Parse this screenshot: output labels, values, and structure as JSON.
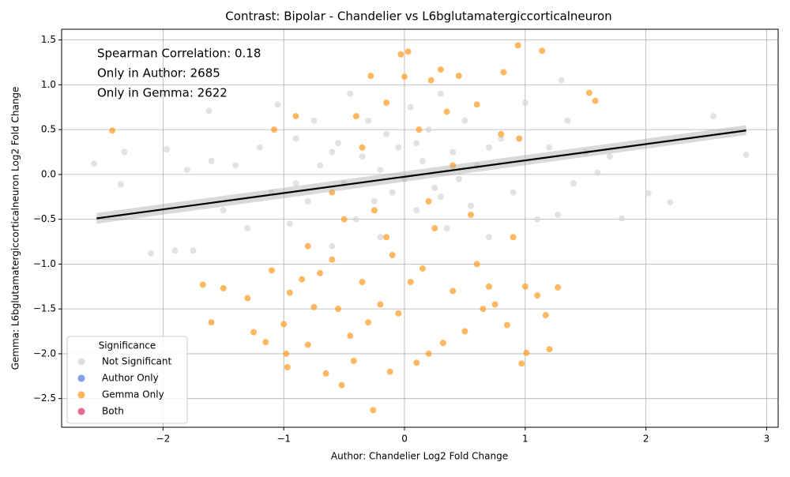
{
  "chart_data": {
    "type": "scatter",
    "title": "Contrast: Bipolar - Chandelier vs L6bglutamatergiccorticalneuron",
    "x_label": "Author: Chandelier Log2 Fold Change",
    "y_label": "Gemma: L6bglutamatergiccorticalneuron Log2 Fold Change",
    "annotations": [
      "Spearman Correlation: 0.18",
      "Only in Author: 2685",
      "Only in Gemma: 2622"
    ],
    "xlim": [
      -2.84,
      3.095
    ],
    "ylim": [
      -2.82,
      1.62
    ],
    "xticks": [
      {
        "value": -2,
        "label": "−2"
      },
      {
        "value": -1,
        "label": "−1"
      },
      0,
      1,
      2,
      3
    ],
    "yticks": [
      {
        "value": -2.5,
        "label": "−2.5"
      },
      {
        "value": -2.0,
        "label": "−2.0"
      },
      {
        "value": -1.5,
        "label": "−1.5"
      },
      {
        "value": -1.0,
        "label": "−1.0"
      },
      {
        "value": -0.5,
        "label": "−0.5"
      },
      {
        "value": 0,
        "label": "0.0"
      },
      0.5,
      {
        "value": 1.0,
        "label": "1.0"
      },
      1.5
    ],
    "grid": true,
    "legend_title": "Significance",
    "legend_position": "lower left",
    "series": [
      {
        "name": "Not Significant",
        "color": "#d3d3d3",
        "x": [
          -2.57,
          -2.1,
          -2.32,
          -2.35,
          -1.97,
          -1.9,
          -1.75,
          -1.8,
          -1.62,
          -1.6,
          -1.5,
          -1.4,
          -1.3,
          -1.2,
          -1.1,
          -1.05,
          -0.95,
          -0.9,
          -0.8,
          -0.75,
          -0.7,
          -0.6,
          -0.55,
          -0.5,
          -0.45,
          -0.4,
          -0.35,
          -0.3,
          -0.25,
          -0.2,
          -0.15,
          -0.1,
          -0.05,
          0,
          0.05,
          0.1,
          0.15,
          0.2,
          0.25,
          0.3,
          0.35,
          0.4,
          0.45,
          0.5,
          0.55,
          0.6,
          0.7,
          0.8,
          0.9,
          1.0,
          1.1,
          1.2,
          1.3,
          1.4,
          1.5,
          1.6,
          1.7,
          1.8,
          2.02,
          2.2,
          2.56,
          2.83,
          1.27,
          1.35,
          -0.2,
          0.1,
          -0.6,
          0.3,
          -0.9,
          0.7
        ],
        "values": [
          0.12,
          -0.88,
          0.25,
          -0.11,
          0.28,
          -0.85,
          -0.85,
          0.05,
          0.71,
          0.15,
          -0.4,
          0.1,
          -0.6,
          0.3,
          -0.2,
          0.78,
          -0.55,
          0.4,
          -0.3,
          0.6,
          0.1,
          -0.8,
          0.35,
          -0.1,
          0.9,
          -0.5,
          0.2,
          0.6,
          -0.3,
          0.05,
          0.45,
          -0.2,
          0.3,
          -0.05,
          0.75,
          -0.4,
          0.15,
          0.5,
          -0.15,
          0.9,
          -0.6,
          0.25,
          -0.05,
          0.6,
          -0.35,
          0.1,
          -0.7,
          0.4,
          -0.2,
          0.8,
          -0.5,
          0.3,
          1.05,
          -0.1,
          0.25,
          0.02,
          0.2,
          -0.49,
          -0.21,
          -0.31,
          0.65,
          0.22,
          -0.45,
          0.6,
          -0.7,
          0.35,
          0.25,
          -0.25,
          -0.1,
          0.3
        ]
      },
      {
        "name": "Author Only",
        "color": "#5b7fe0",
        "x": [],
        "values": []
      },
      {
        "name": "Gemma Only",
        "color": "#ff9a1f",
        "x": [
          -2.42,
          -1.67,
          -1.6,
          -1.5,
          -1.3,
          -1.25,
          -1.15,
          -1.1,
          -1.08,
          -1.0,
          -0.98,
          -0.97,
          -0.95,
          -0.9,
          -0.85,
          -0.8,
          -0.75,
          -0.7,
          -0.65,
          -0.6,
          -0.55,
          -0.52,
          -0.5,
          -0.45,
          -0.42,
          -0.4,
          -0.35,
          -0.3,
          -0.28,
          -0.26,
          -0.25,
          -0.2,
          -0.15,
          -0.12,
          -0.1,
          -0.05,
          -0.03,
          0.0,
          0.03,
          0.05,
          0.1,
          0.12,
          0.15,
          0.2,
          0.22,
          0.25,
          0.3,
          0.32,
          0.35,
          0.4,
          0.45,
          0.5,
          0.55,
          0.6,
          0.65,
          0.7,
          0.75,
          0.8,
          0.82,
          0.85,
          0.9,
          0.94,
          0.97,
          1.0,
          1.01,
          1.1,
          1.14,
          1.17,
          1.2,
          1.27,
          1.53,
          1.58,
          0.95,
          -0.6,
          0.2,
          -0.35,
          0.4,
          -0.15,
          0.6,
          -0.8
        ],
        "values": [
          0.49,
          -1.23,
          -1.65,
          -1.27,
          -1.38,
          -1.76,
          -1.87,
          -1.07,
          0.5,
          -1.67,
          -2.0,
          -2.15,
          -1.32,
          0.65,
          -1.17,
          -1.9,
          -1.48,
          -1.1,
          -2.22,
          -0.95,
          -1.5,
          -2.35,
          -0.5,
          -1.8,
          -2.08,
          0.65,
          -1.2,
          -1.65,
          1.1,
          -2.63,
          -0.4,
          -1.45,
          0.8,
          -2.2,
          -0.9,
          -1.55,
          1.34,
          1.09,
          1.37,
          -1.2,
          -2.1,
          0.5,
          -1.05,
          -2.0,
          1.05,
          -0.6,
          1.17,
          -1.88,
          0.7,
          -1.3,
          1.1,
          -1.75,
          -0.45,
          0.78,
          -1.5,
          -1.25,
          -1.45,
          0.45,
          1.14,
          -1.68,
          -0.7,
          1.44,
          -2.11,
          -1.25,
          -1.99,
          -1.35,
          1.38,
          -1.57,
          -1.95,
          -1.26,
          0.91,
          0.82,
          0.4,
          -0.2,
          -0.3,
          0.3,
          0.1,
          -0.7,
          -1.0,
          -0.8
        ]
      },
      {
        "name": "Both",
        "color": "#dc3c64",
        "x": [],
        "values": []
      }
    ],
    "regression": {
      "color": "#000000",
      "x": [
        -2.55,
        2.83
      ],
      "values": [
        -0.49,
        0.49
      ],
      "lower": [
        -0.55,
        0.44
      ],
      "upper": [
        -0.43,
        0.55
      ]
    }
  }
}
